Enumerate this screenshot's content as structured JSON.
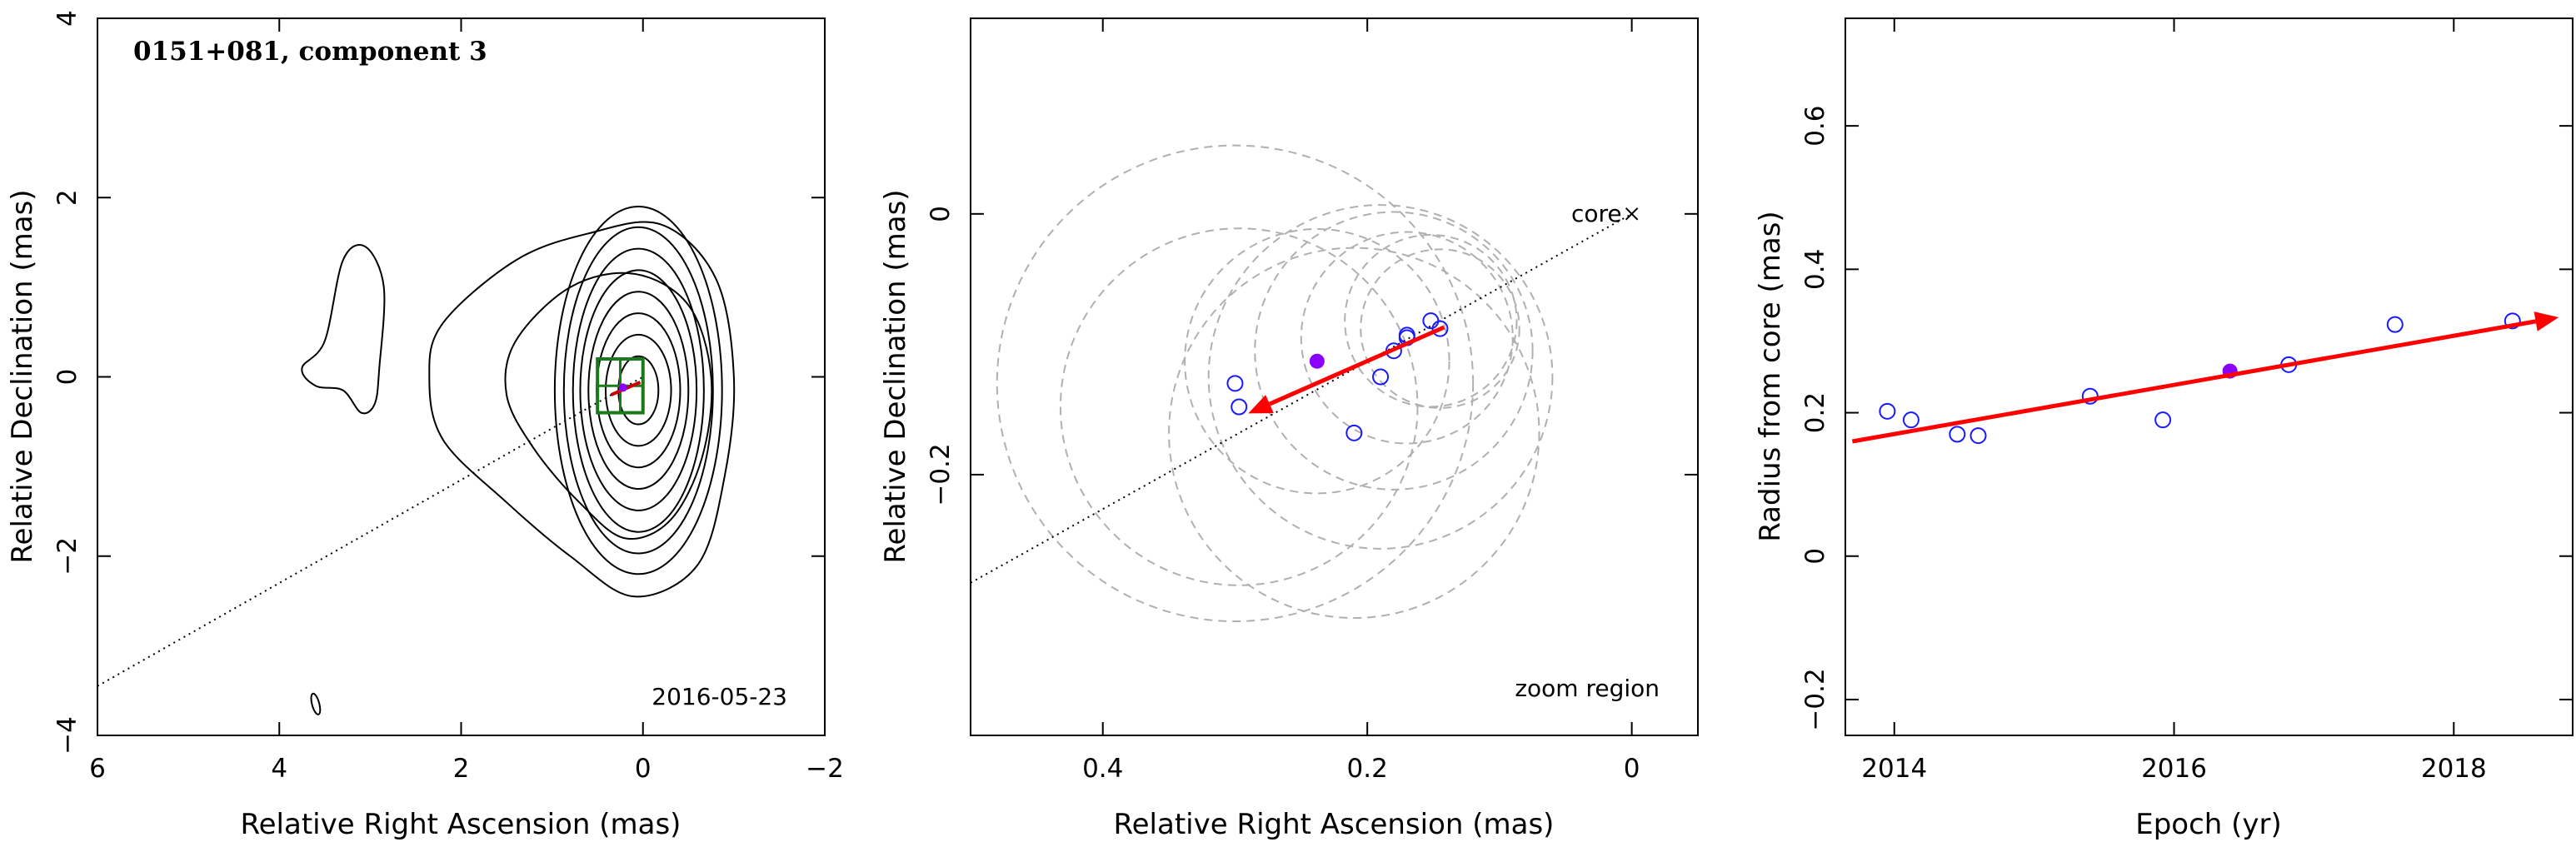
{
  "chart_data": [
    {
      "type": "contour",
      "title": "0151+081, component 3",
      "annotation_date": "2016-05-23",
      "xlabel": "Relative Right Ascension (mas)",
      "ylabel": "Relative Declination (mas)",
      "xlim": [
        6,
        -2
      ],
      "ylim": [
        -4,
        4
      ],
      "xticks": [
        6,
        4,
        2,
        0,
        -2
      ],
      "yticks": [
        -4,
        -2,
        0,
        2,
        4
      ],
      "xtick_labels": [
        "6",
        "4",
        "2",
        "0",
        "−2"
      ],
      "ytick_labels": [
        "−4",
        "−2",
        "0",
        "2",
        "4"
      ],
      "contours": {
        "core_center": [
          0.05,
          -0.15
        ],
        "core_rx": [
          0.22,
          0.36,
          0.46,
          0.55,
          0.64,
          0.72,
          0.82,
          0.92
        ],
        "core_ry": [
          0.38,
          0.62,
          0.86,
          1.1,
          1.34,
          1.58,
          1.82,
          2.05
        ],
        "outer_envelope": [
          [
            2.2,
            0.6
          ],
          [
            1.4,
            1.3
          ],
          [
            0.6,
            1.6
          ],
          [
            -0.2,
            1.7
          ],
          [
            -0.8,
            1.1
          ],
          [
            -1.0,
            0.0
          ],
          [
            -0.9,
            -1.1
          ],
          [
            -0.6,
            -2.1
          ],
          [
            0.1,
            -2.45
          ],
          [
            0.8,
            -2.0
          ],
          [
            1.5,
            -1.4
          ],
          [
            2.2,
            -0.7
          ],
          [
            2.35,
            0.0
          ]
        ],
        "inner_envelope": [
          [
            1.4,
            0.4
          ],
          [
            0.8,
            1.0
          ],
          [
            0.1,
            1.15
          ],
          [
            -0.5,
            0.8
          ],
          [
            -0.75,
            0.0
          ],
          [
            -0.65,
            -0.9
          ],
          [
            -0.3,
            -1.6
          ],
          [
            0.2,
            -1.8
          ],
          [
            0.7,
            -1.4
          ],
          [
            1.2,
            -0.8
          ],
          [
            1.5,
            -0.2
          ]
        ],
        "west_island": [
          [
            3.5,
            0.4
          ],
          [
            3.3,
            1.3
          ],
          [
            3.05,
            1.45
          ],
          [
            2.85,
            1.0
          ],
          [
            2.9,
            0.1
          ],
          [
            2.95,
            -0.3
          ],
          [
            3.1,
            -0.4
          ],
          [
            3.3,
            -0.15
          ],
          [
            3.6,
            -0.1
          ],
          [
            3.75,
            0.1
          ]
        ]
      },
      "zoom_box": {
        "x": [
          0.5,
          0.0
        ],
        "y": [
          -0.4,
          0.2
        ]
      },
      "jet_line": {
        "x": [
          6.0,
          0.0
        ],
        "y": [
          -3.45,
          0.0
        ]
      },
      "beam": {
        "x": 3.6,
        "y": -3.65,
        "rx": 0.04,
        "ry": 0.12
      }
    },
    {
      "type": "scatter",
      "annotation_core": "core",
      "annotation_zoom": "zoom region",
      "xlabel": "Relative Right Ascension (mas)",
      "ylabel": "Relative Declination (mas)",
      "xlim": [
        0.5,
        -0.05
      ],
      "ylim": [
        -0.4,
        0.15
      ],
      "xticks": [
        0.4,
        0.2,
        0.0
      ],
      "yticks": [
        -0.2,
        0.0
      ],
      "xtick_labels": [
        "0.4",
        "0.2",
        "0"
      ],
      "ytick_labels": [
        "−0.2",
        "0"
      ],
      "core_position": [
        0.0,
        0.0
      ],
      "jet_line": {
        "x": [
          0.5,
          0.0
        ],
        "y": [
          -0.283,
          0.0
        ]
      },
      "points": [
        {
          "x": 0.3,
          "y": -0.13
        },
        {
          "x": 0.297,
          "y": -0.148
        },
        {
          "x": 0.21,
          "y": -0.168
        },
        {
          "x": 0.19,
          "y": -0.125
        },
        {
          "x": 0.18,
          "y": -0.105
        },
        {
          "x": 0.17,
          "y": -0.095
        },
        {
          "x": 0.17,
          "y": -0.093
        },
        {
          "x": 0.152,
          "y": -0.082
        },
        {
          "x": 0.145,
          "y": -0.088
        }
      ],
      "highlight": {
        "x": 0.238,
        "y": -0.113
      },
      "circles": [
        {
          "x": 0.3,
          "y": -0.13,
          "r": 0.18
        },
        {
          "x": 0.297,
          "y": -0.148,
          "r": 0.135
        },
        {
          "x": 0.21,
          "y": -0.168,
          "r": 0.14
        },
        {
          "x": 0.19,
          "y": -0.125,
          "r": 0.13
        },
        {
          "x": 0.18,
          "y": -0.105,
          "r": 0.105
        },
        {
          "x": 0.17,
          "y": -0.095,
          "r": 0.08
        },
        {
          "x": 0.152,
          "y": -0.082,
          "r": 0.065
        },
        {
          "x": 0.145,
          "y": -0.088,
          "r": 0.06
        },
        {
          "x": 0.238,
          "y": -0.113,
          "r": 0.1
        }
      ],
      "arrow": {
        "from": [
          0.142,
          -0.087
        ],
        "to": [
          0.29,
          -0.153
        ]
      }
    },
    {
      "type": "scatter",
      "xlabel": "Epoch (yr)",
      "ylabel": "Radius from core (mas)",
      "xlim": [
        2013.65,
        2018.85
      ],
      "ylim": [
        -0.25,
        0.75
      ],
      "xticks": [
        2014,
        2016,
        2018
      ],
      "yticks": [
        -0.2,
        0.0,
        0.2,
        0.4,
        0.6
      ],
      "xtick_labels": [
        "2014",
        "2016",
        "2018"
      ],
      "ytick_labels": [
        "−0.2",
        "0",
        "0.2",
        "0.4",
        "0.6"
      ],
      "points": [
        {
          "x": 2013.95,
          "y": 0.202
        },
        {
          "x": 2014.12,
          "y": 0.19
        },
        {
          "x": 2014.45,
          "y": 0.17
        },
        {
          "x": 2014.6,
          "y": 0.168
        },
        {
          "x": 2015.4,
          "y": 0.223
        },
        {
          "x": 2015.92,
          "y": 0.19
        },
        {
          "x": 2016.82,
          "y": 0.267
        },
        {
          "x": 2017.58,
          "y": 0.323
        },
        {
          "x": 2018.42,
          "y": 0.328
        }
      ],
      "highlight": {
        "x": 2016.4,
        "y": 0.258
      },
      "arrow": {
        "from": [
          2013.7,
          0.16
        ],
        "to": [
          2018.75,
          0.333
        ]
      }
    }
  ]
}
